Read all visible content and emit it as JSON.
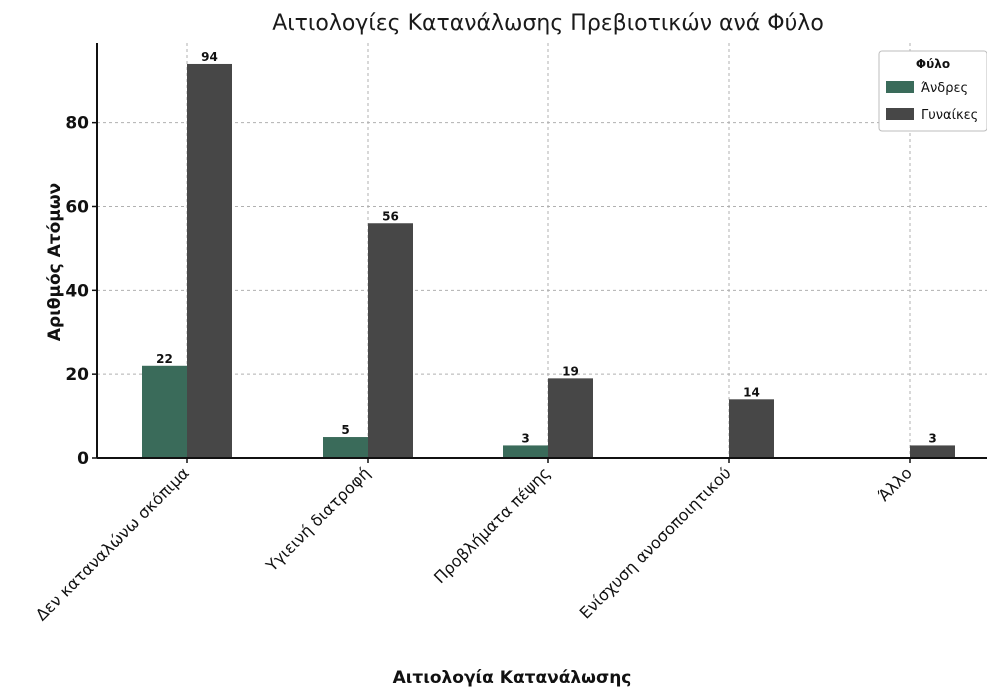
{
  "chart_data": {
    "type": "bar",
    "title": "Αιτιολογίες Κατανάλωσης Πρεβιοτικών ανά Φύλο",
    "xlabel": "Αιτιολογία Κατανάλωσης",
    "ylabel": "Αριθμός Ατόμων",
    "categories": [
      "Δεν καταναλώνω σκόπιμα",
      "Υγιεινή διατροφή",
      "Προβλήματα πέψης",
      "Ενίσχυση ανοσοποιητικού",
      "Άλλο"
    ],
    "series": [
      {
        "name": "Άνδρες",
        "values": [
          22,
          5,
          3,
          0,
          0
        ],
        "color": "#3a6b5a"
      },
      {
        "name": "Γυναίκες",
        "values": [
          94,
          56,
          19,
          14,
          3
        ],
        "color": "#474747"
      }
    ],
    "ylim": [
      0,
      99
    ],
    "yticks": [
      0,
      20,
      40,
      60,
      80
    ],
    "grid": true,
    "legend": {
      "title": "Φύλο",
      "placement": "top-right"
    }
  }
}
